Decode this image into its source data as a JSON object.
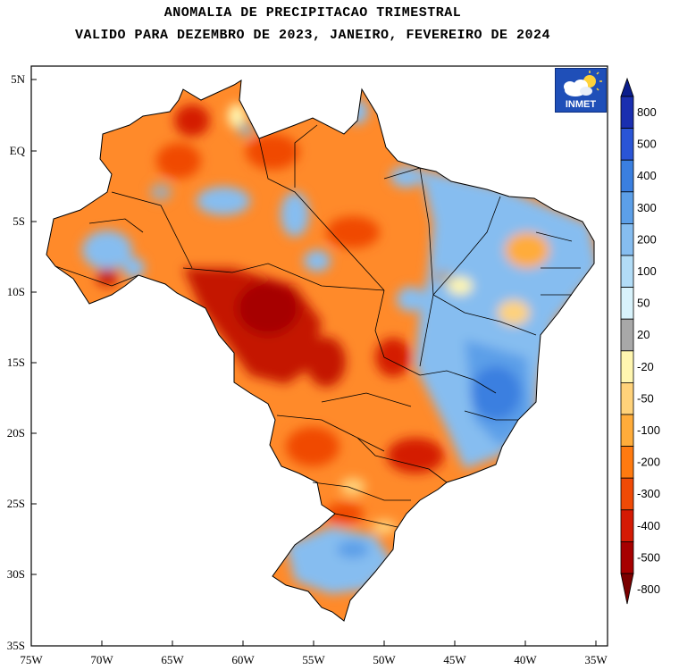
{
  "title": {
    "line1": "ANOMALIA DE PRECIPITACAO TRIMESTRAL",
    "line2": "VALIDO PARA DEZEMBRO DE 2023, JANEIRO, FEVEREIRO DE 2024"
  },
  "logo": {
    "text": "INMET",
    "icon": "cloud-sun-icon"
  },
  "axes": {
    "lat_labels": [
      "5N",
      "EQ",
      "5S",
      "10S",
      "15S",
      "20S",
      "25S",
      "30S",
      "35S"
    ],
    "lon_labels": [
      "75W",
      "70W",
      "65W",
      "60W",
      "55W",
      "50W",
      "45W",
      "40W",
      "35W"
    ]
  },
  "colorbar": {
    "labels": [
      "800",
      "500",
      "400",
      "300",
      "200",
      "100",
      "50",
      "20",
      "-20",
      "-50",
      "-100",
      "-200",
      "-300",
      "-400",
      "-500",
      "-800"
    ],
    "colors": [
      "#1a2fb0",
      "#2a55d6",
      "#3a7fe0",
      "#5c9fe8",
      "#86bdf0",
      "#b2dcf6",
      "#d8f2fb",
      "#a8a8a8",
      "#fff6b0",
      "#ffd27a",
      "#ffac3a",
      "#ff7a10",
      "#f04a06",
      "#d41a04",
      "#a60000"
    ],
    "top_arrow": "#0a1d8c",
    "bottom_arrow": "#7a0000"
  },
  "colors": {
    "brazil_base": "#ff8a2a",
    "wet": "#5c9fe8",
    "dry": "#c41404"
  }
}
